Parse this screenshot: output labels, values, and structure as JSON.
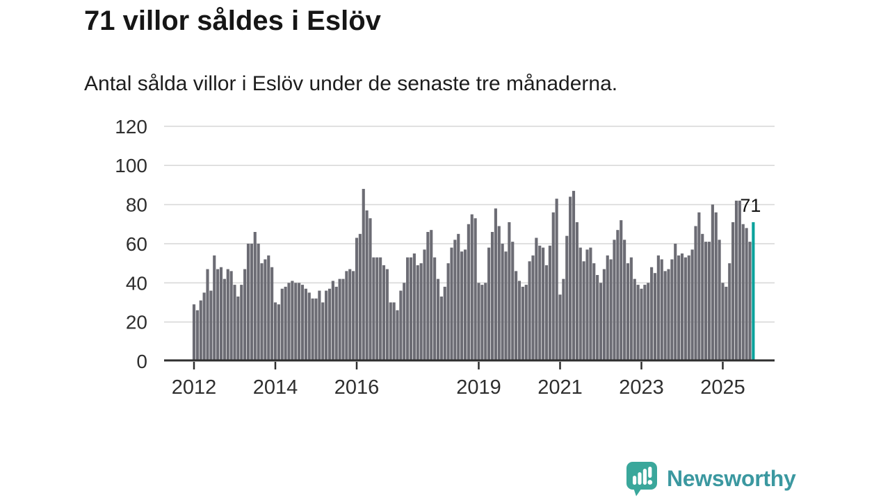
{
  "header": {
    "title": "71 villor såldes i Eslöv",
    "subtitle": "Antal sålda villor i Eslöv under de senaste tre månaderna."
  },
  "chart_data": {
    "type": "bar",
    "title": "71 villor såldes i Eslöv",
    "subtitle": "Antal sålda villor i Eslöv under de senaste tre månaderna.",
    "ylabel": "",
    "xlabel": "",
    "x_unit": "month",
    "x_start": "2012-01",
    "x_end": "2025-10",
    "ylim": [
      0,
      120
    ],
    "grid": true,
    "legend_position": "none",
    "yticks": [
      0,
      20,
      40,
      60,
      80,
      100,
      120
    ],
    "xticks": [
      {
        "label": "2012",
        "month_index": 0
      },
      {
        "label": "2014",
        "month_index": 24
      },
      {
        "label": "2016",
        "month_index": 48
      },
      {
        "label": "2019",
        "month_index": 84
      },
      {
        "label": "2021",
        "month_index": 108
      },
      {
        "label": "2023",
        "month_index": 132
      },
      {
        "label": "2025",
        "month_index": 156
      }
    ],
    "values": [
      29,
      26,
      31,
      35,
      47,
      36,
      54,
      47,
      48,
      42,
      47,
      46,
      39,
      33,
      39,
      47,
      60,
      60,
      66,
      60,
      50,
      52,
      54,
      48,
      30,
      29,
      37,
      38,
      40,
      41,
      40,
      40,
      39,
      37,
      35,
      32,
      32,
      36,
      30,
      36,
      37,
      41,
      38,
      42,
      42,
      46,
      47,
      46,
      63,
      65,
      88,
      77,
      73,
      53,
      53,
      53,
      49,
      47,
      30,
      30,
      26,
      36,
      40,
      53,
      53,
      55,
      49,
      50,
      57,
      66,
      67,
      53,
      42,
      33,
      38,
      50,
      58,
      62,
      65,
      56,
      57,
      70,
      75,
      73,
      40,
      39,
      40,
      58,
      66,
      78,
      69,
      60,
      56,
      71,
      61,
      46,
      41,
      38,
      39,
      51,
      54,
      63,
      59,
      58,
      49,
      59,
      76,
      83,
      34,
      42,
      64,
      84,
      87,
      71,
      58,
      51,
      57,
      58,
      50,
      44,
      40,
      47,
      54,
      52,
      62,
      67,
      72,
      62,
      50,
      53,
      42,
      39,
      37,
      39,
      40,
      48,
      45,
      54,
      52,
      46,
      47,
      52,
      60,
      54,
      55,
      53,
      54,
      57,
      69,
      76,
      65,
      61,
      61,
      80,
      76,
      62,
      40,
      38,
      50,
      71,
      82,
      82,
      70,
      68,
      61,
      71
    ],
    "highlight_last": {
      "value": 71,
      "label": "71",
      "color": "#0BA29C"
    },
    "bar_color": "#6C6C74",
    "gridline_color": "#D9D9D9",
    "axis_color": "#2E2E2E"
  },
  "annotation": {
    "last_value_label": "71"
  },
  "footer": {
    "brand_name": "Newsworthy"
  },
  "colors": {
    "accent_teal": "#0BA29C",
    "bar_gray": "#6C6C74",
    "logo_mark_teal": "#3AA79B",
    "logo_text_teal": "#3B98A0"
  }
}
